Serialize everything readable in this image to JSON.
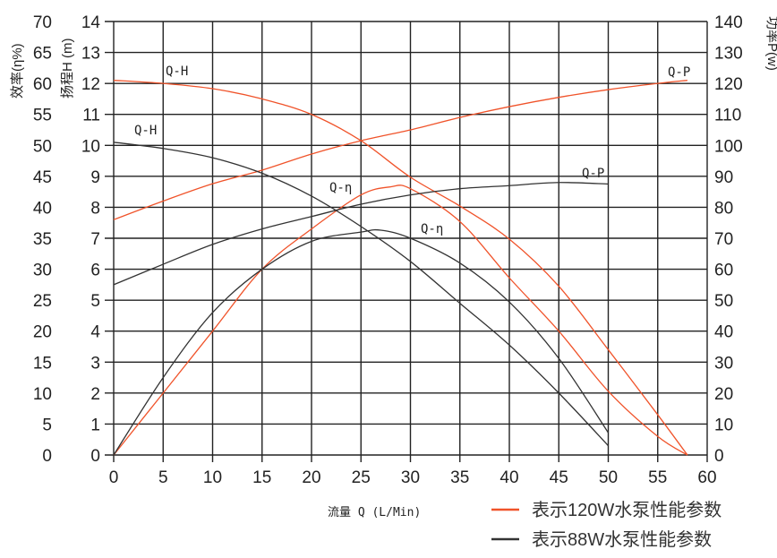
{
  "chart_data": {
    "type": "line",
    "xlabel": "流量 Q (L/Min)",
    "x_ticks": [
      0,
      5,
      10,
      15,
      20,
      25,
      30,
      35,
      40,
      45,
      50,
      55,
      60
    ],
    "xlim": [
      0,
      60
    ],
    "axes": {
      "efficiency": {
        "label": "效率(η%)",
        "ticks": [
          0,
          5,
          10,
          15,
          20,
          25,
          30,
          35,
          40,
          45,
          50,
          55,
          60,
          65,
          70
        ],
        "range": [
          0,
          70
        ]
      },
      "head": {
        "label": "扬程H (m)",
        "ticks": [
          0,
          1,
          2,
          3,
          4,
          5,
          6,
          7,
          8,
          9,
          10,
          11,
          12,
          13,
          14
        ],
        "range": [
          0,
          14
        ]
      },
      "power": {
        "label": "功率P(w)",
        "ticks": [
          0,
          10,
          20,
          30,
          40,
          50,
          60,
          70,
          80,
          90,
          100,
          110,
          120,
          130,
          140
        ],
        "range": [
          0,
          140
        ]
      }
    },
    "grid": true,
    "colors": {
      "pump_120w": "#f0532a",
      "pump_88w": "#333333"
    },
    "series": [
      {
        "name": "Q-H",
        "pump": "120W",
        "axis": "head",
        "color": "#f0532a",
        "x": [
          0,
          5,
          10,
          15,
          20,
          25,
          30,
          35,
          40,
          45,
          50,
          55,
          58
        ],
        "y": [
          12.1,
          12.0,
          11.83,
          11.5,
          11.0,
          10.15,
          8.97,
          8.04,
          6.97,
          5.45,
          3.4,
          1.3,
          0
        ]
      },
      {
        "name": "Q-P",
        "pump": "120W",
        "axis": "power",
        "color": "#f0532a",
        "x": [
          0,
          5,
          10,
          15,
          20,
          25,
          30,
          35,
          40,
          45,
          50,
          55,
          58
        ],
        "y": [
          76,
          82,
          87.6,
          92,
          97.2,
          101.5,
          105,
          109,
          112.5,
          115.5,
          118,
          120,
          121
        ]
      },
      {
        "name": "Q-η",
        "pump": "120W",
        "axis": "efficiency",
        "color": "#f0532a",
        "x": [
          0,
          5,
          10,
          15,
          20,
          25,
          28,
          30,
          35,
          40,
          45,
          50,
          55,
          58
        ],
        "y": [
          0,
          10,
          20,
          30,
          36.5,
          42,
          43.3,
          43,
          37.7,
          28.6,
          20,
          10.3,
          3,
          0
        ]
      },
      {
        "name": "Q-H",
        "pump": "88W",
        "axis": "head",
        "color": "#333333",
        "x": [
          0,
          5,
          10,
          15,
          20,
          25,
          30,
          35,
          40,
          45,
          50
        ],
        "y": [
          10.1,
          9.9,
          9.6,
          9.1,
          8.36,
          7.38,
          6.25,
          4.9,
          3.55,
          2.0,
          0.3
        ]
      },
      {
        "name": "Q-P",
        "pump": "88W",
        "axis": "power",
        "color": "#333333",
        "x": [
          0,
          5,
          10,
          15,
          20,
          25,
          30,
          35,
          40,
          45,
          50
        ],
        "y": [
          55,
          61.6,
          68,
          73,
          77,
          81,
          84,
          86,
          87,
          88,
          87.5
        ]
      },
      {
        "name": "Q-η",
        "pump": "88W",
        "axis": "efficiency",
        "color": "#333333",
        "x": [
          0,
          5,
          10,
          15,
          20,
          25,
          27,
          30,
          35,
          40,
          45,
          50
        ],
        "y": [
          0,
          12.5,
          23,
          30,
          34.5,
          36,
          36.3,
          35,
          31,
          24.7,
          15.6,
          3.6
        ]
      }
    ],
    "curve_labels": [
      "Q-H",
      "Q-H",
      "Q-η",
      "Q-η",
      "Q-P",
      "Q-P"
    ],
    "legend": [
      {
        "text": "表示120W水泵性能参数",
        "color": "#f0532a"
      },
      {
        "text": "表示88W水泵性能参数",
        "color": "#333333"
      }
    ],
    "legend_position": "bottom-right"
  }
}
